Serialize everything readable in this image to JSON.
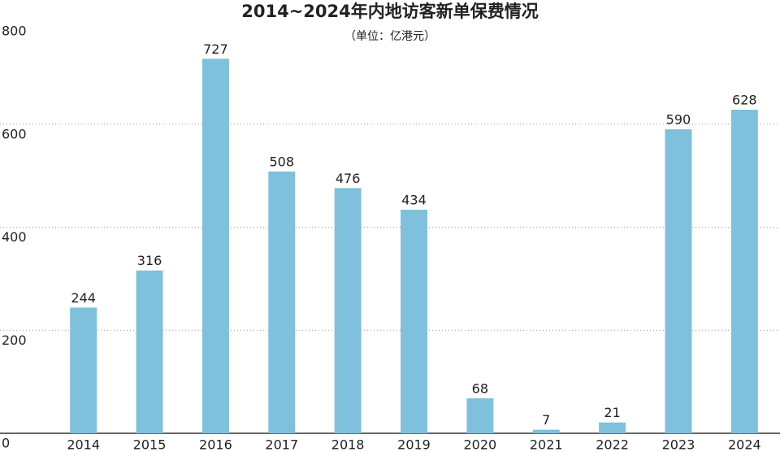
{
  "chart_data": {
    "type": "bar",
    "title": "2014~2024年内地访客新单保费情况",
    "subtitle": "（单位：亿港元）",
    "categories": [
      "2014",
      "2015",
      "2016",
      "2017",
      "2018",
      "2019",
      "2020",
      "2021",
      "2022",
      "2023",
      "2024"
    ],
    "values": [
      244,
      316,
      727,
      508,
      476,
      434,
      68,
      7,
      21,
      590,
      628
    ],
    "color": "#7fc1dd",
    "ylim": [
      0,
      800
    ],
    "yticks": [
      0,
      200,
      400,
      600,
      800
    ],
    "grid": true
  }
}
